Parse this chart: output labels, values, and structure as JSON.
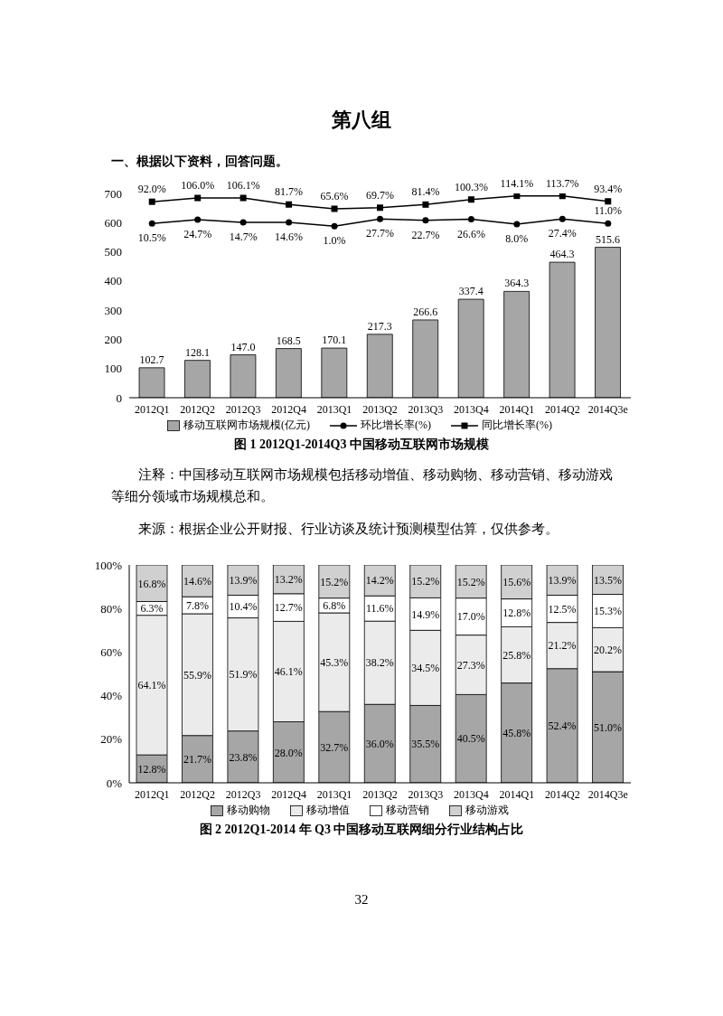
{
  "chart_data": [
    {
      "type": "bar",
      "title": "图 1 2012Q1-2014Q3 中国移动互联网市场规模",
      "annotations": [
        "第八组",
        "一、根据以下资料，回答问题。",
        "注释：中国移动互联网市场规模包括移动增值、移动购物、移动营销、移动游戏等细分领域市场规模总和。",
        "来源：根据企业公开财报、行业访谈及统计预测模型估算，仅供参考。"
      ],
      "categories": [
        "2012Q1",
        "2012Q2",
        "2012Q3",
        "2012Q4",
        "2013Q1",
        "2013Q2",
        "2013Q3",
        "2013Q4",
        "2014Q1",
        "2014Q2",
        "2014Q3e"
      ],
      "series": [
        {
          "name": "移动互联网市场规模(亿元)",
          "type": "bar",
          "color": "#a6a6a6",
          "values": [
            102.7,
            128.1,
            147.0,
            168.5,
            170.1,
            217.3,
            266.6,
            337.4,
            364.3,
            464.3,
            515.6
          ],
          "value_labels": [
            "102.7",
            "128.1",
            "147.0",
            "168.5",
            "170.1",
            "217.3",
            "266.6",
            "337.4",
            "364.3",
            "464.3",
            "515.6"
          ]
        },
        {
          "name": "环比增长率(%)",
          "type": "line",
          "axis": "y2",
          "marker": "circle",
          "color": "#000000",
          "values": [
            10.5,
            24.7,
            14.7,
            14.6,
            1.0,
            27.7,
            22.7,
            26.6,
            8.0,
            27.4,
            11.0
          ],
          "value_labels": [
            "10.5%",
            "24.7%",
            "14.7%",
            "14.6%",
            "1.0%",
            "27.7%",
            "22.7%",
            "26.6%",
            "8.0%",
            "27.4%",
            "11.0%"
          ]
        },
        {
          "name": "同比增长率(%)",
          "type": "line",
          "axis": "y2",
          "marker": "square",
          "color": "#000000",
          "values": [
            92.0,
            106.0,
            106.1,
            81.7,
            65.6,
            69.7,
            81.4,
            100.3,
            114.1,
            113.7,
            93.4
          ],
          "value_labels": [
            "92.0%",
            "106.0%",
            "106.1%",
            "81.7%",
            "65.6%",
            "69.7%",
            "81.4%",
            "100.3%",
            "114.1%",
            "113.7%",
            "93.4%"
          ]
        }
      ],
      "ylim": [
        0,
        700
      ],
      "yticks": [
        0,
        100,
        200,
        300,
        400,
        500,
        600,
        700
      ],
      "y2lim": [
        -640,
        123
      ],
      "grid": false,
      "legend": "bottom",
      "line_style": "solid"
    },
    {
      "type": "bar",
      "title": "图 2 2012Q1-2014 年 Q3 中国移动互联网细分行业结构占比",
      "annotations": [
        "32"
      ],
      "stacked": true,
      "categories": [
        "2012Q1",
        "2012Q2",
        "2012Q3",
        "2012Q4",
        "2013Q1",
        "2013Q2",
        "2013Q3",
        "2013Q4",
        "2014Q1",
        "2014Q2",
        "2014Q3e"
      ],
      "series": [
        {
          "name": "移动购物",
          "color": "#a6a6a6",
          "values": [
            12.8,
            21.7,
            23.8,
            28.0,
            32.7,
            36.0,
            35.5,
            40.5,
            45.8,
            52.4,
            51.0
          ],
          "value_labels": [
            "12.8%",
            "21.7%",
            "23.8%",
            "28.0%",
            "32.7%",
            "36.0%",
            "35.5%",
            "40.5%",
            "45.8%",
            "52.4%",
            "51.0%"
          ]
        },
        {
          "name": "移动增值",
          "color": "#ebebeb",
          "values": [
            64.1,
            55.9,
            51.9,
            46.1,
            45.3,
            38.2,
            34.5,
            27.3,
            25.8,
            21.2,
            20.2
          ],
          "value_labels": [
            "64.1%",
            "55.9%",
            "51.9%",
            "46.1%",
            "45.3%",
            "38.2%",
            "34.5%",
            "27.3%",
            "25.8%",
            "21.2%",
            "20.2%"
          ]
        },
        {
          "name": "移动营销",
          "color": "#ffffff",
          "values": [
            6.3,
            7.8,
            10.4,
            12.7,
            6.8,
            11.6,
            14.9,
            17.0,
            12.8,
            12.5,
            15.3
          ],
          "value_labels": [
            "6.3%",
            "7.8%",
            "10.4%",
            "12.7%",
            "6.8%",
            "11.6%",
            "14.9%",
            "17.0%",
            "12.8%",
            "12.5%",
            "15.3%"
          ]
        },
        {
          "name": "移动游戏",
          "color": "#d0d0d0",
          "values": [
            16.8,
            14.6,
            13.9,
            13.2,
            15.2,
            14.2,
            15.2,
            15.2,
            15.6,
            13.9,
            13.5
          ],
          "value_labels": [
            "16.8%",
            "14.6%",
            "13.9%",
            "13.2%",
            "15.2%",
            "14.2%",
            "15.2%",
            "15.2%",
            "15.6%",
            "13.9%",
            "13.5%"
          ]
        }
      ],
      "ylim": [
        0,
        100
      ],
      "yticks": [
        {
          "value": 0,
          "label": "0%"
        },
        {
          "value": 20,
          "label": "20%"
        },
        {
          "value": 40,
          "label": "40%"
        },
        {
          "value": 60,
          "label": "60%"
        },
        {
          "value": 80,
          "label": "80%"
        },
        {
          "value": 100,
          "label": "100%"
        }
      ],
      "grid": false,
      "legend": "bottom"
    }
  ]
}
